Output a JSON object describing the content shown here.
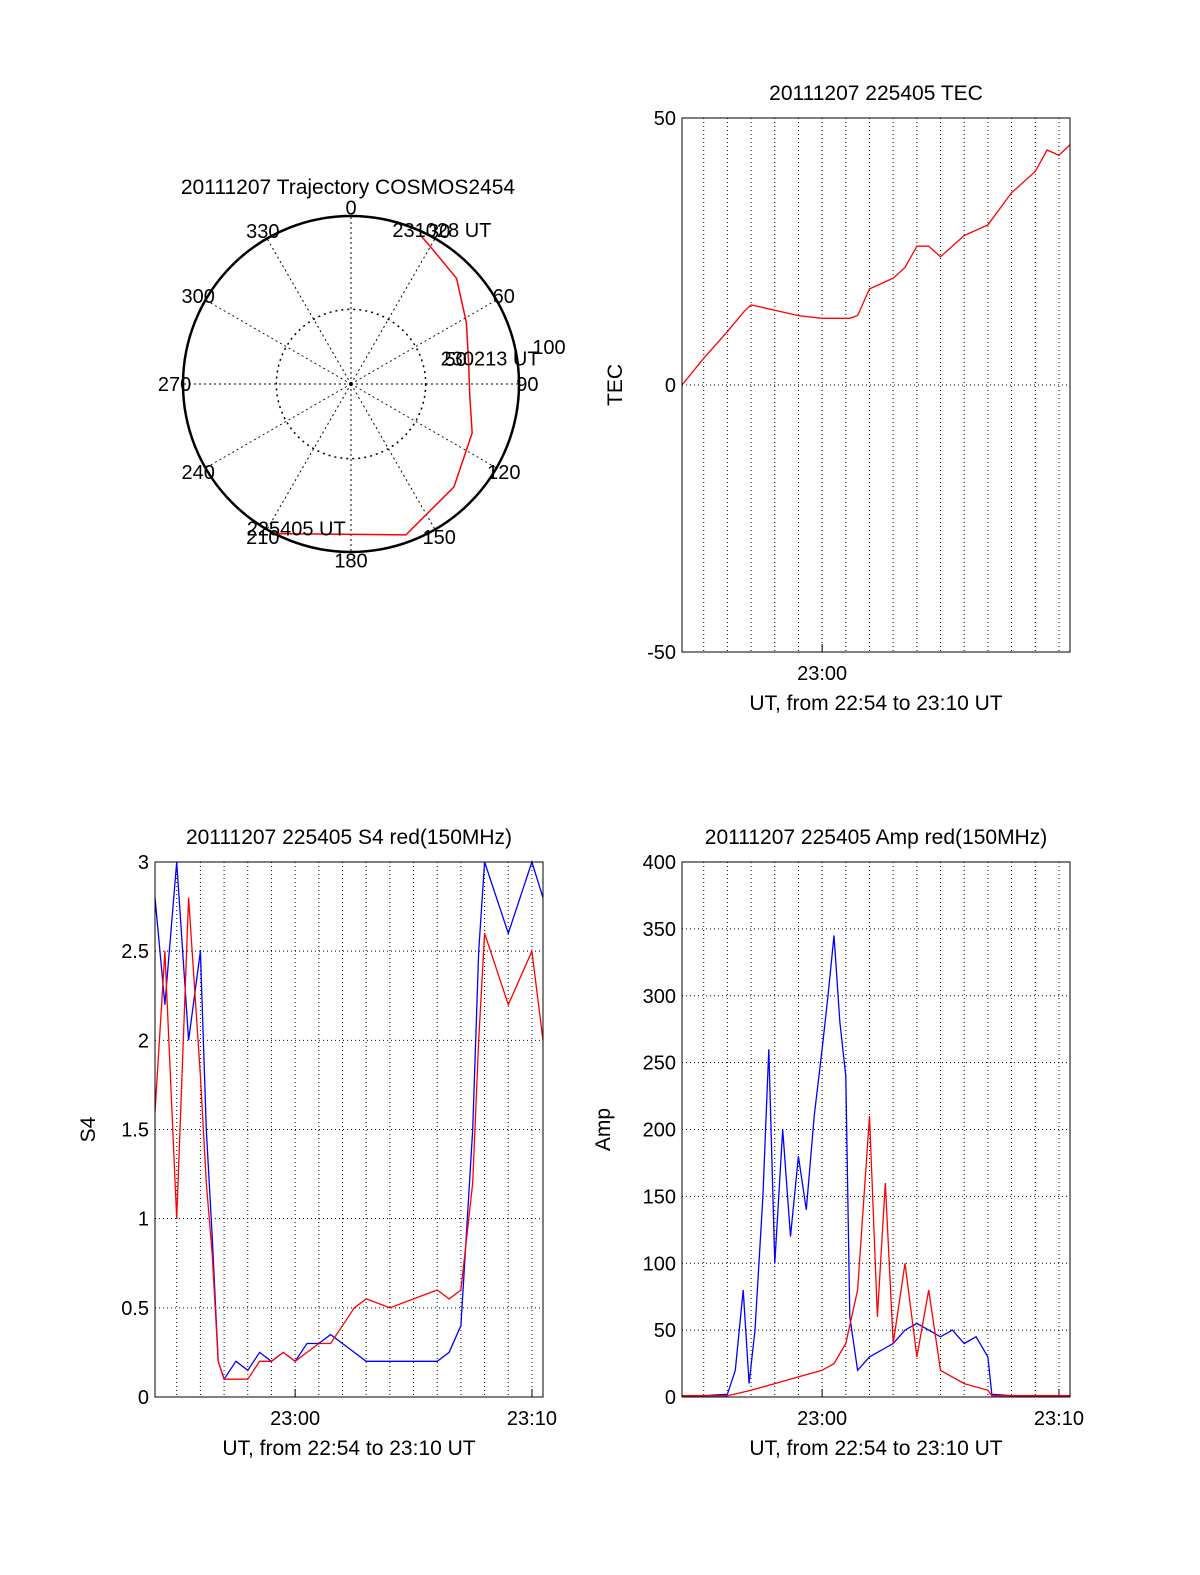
{
  "chart_data": [
    {
      "type": "polar",
      "title": "20111207 Trajectory COSMOS2454",
      "azimuth_labels": [
        "0",
        "30",
        "60",
        "90",
        "120",
        "150",
        "180",
        "210",
        "240",
        "270",
        "300",
        "330"
      ],
      "elevation_rings": [
        {
          "label": "50",
          "elevation": 50
        },
        {
          "label": "100",
          "elevation": 0
        }
      ],
      "trajectory_color": "#ff0000",
      "trajectory": [
        {
          "az": 207,
          "el": 0.05
        },
        {
          "az": 160,
          "el": 4
        },
        {
          "az": 135,
          "el": 12
        },
        {
          "az": 112,
          "el": 20
        },
        {
          "az": 96,
          "el": 26
        },
        {
          "az": 80,
          "el": 26
        },
        {
          "az": 62,
          "el": 20
        },
        {
          "az": 45,
          "el": 10
        },
        {
          "az": 30,
          "el": 5
        },
        {
          "az": 25,
          "el": 2
        }
      ],
      "annotations": [
        {
          "text": "231028 UT",
          "at": "end"
        },
        {
          "text": "230213 UT",
          "at": "middle"
        },
        {
          "text": "225405 UT",
          "at": "start"
        }
      ]
    },
    {
      "type": "line",
      "title": "20111207 225405 TEC",
      "xlabel": "UT, from 22:54 to 23:10 UT",
      "ylabel": "TEC",
      "xlim": [
        "22:54:05",
        "23:10:28"
      ],
      "ylim": [
        -50,
        50
      ],
      "xticks": [
        {
          "label": "23:00",
          "t": "23:00"
        }
      ],
      "yticks": [
        "-50",
        "0",
        "50"
      ],
      "grid": true,
      "series": [
        {
          "color": "#ff0000",
          "points": [
            [
              "22:54:05",
              0
            ],
            [
              "22:55:00",
              5
            ],
            [
              "22:56:00",
              10
            ],
            [
              "22:56:45",
              14
            ],
            [
              "22:57:00",
              15
            ],
            [
              "22:58:00",
              14
            ],
            [
              "22:59:00",
              13
            ],
            [
              "23:00:00",
              12.5
            ],
            [
              "23:01:00",
              12.5
            ],
            [
              "23:01:10",
              12.5
            ],
            [
              "23:01:30",
              13
            ],
            [
              "23:02:00",
              18
            ],
            [
              "23:03:00",
              20
            ],
            [
              "23:03:30",
              22
            ],
            [
              "23:04:00",
              26
            ],
            [
              "23:04:30",
              26
            ],
            [
              "23:05:00",
              24
            ],
            [
              "23:06:00",
              28
            ],
            [
              "23:07:00",
              30
            ],
            [
              "23:08:00",
              36
            ],
            [
              "23:09:00",
              40
            ],
            [
              "23:09:30",
              44
            ],
            [
              "23:10:00",
              43
            ],
            [
              "23:10:28",
              45
            ]
          ]
        }
      ]
    },
    {
      "type": "line",
      "title": "20111207 225405 S4 red(150MHz)",
      "xlabel": "UT, from 22:54 to 23:10 UT",
      "ylabel": "S4",
      "xlim": [
        "22:54:05",
        "23:10:28"
      ],
      "ylim": [
        0,
        3
      ],
      "xticks": [
        {
          "label": "23:00",
          "t": "23:00"
        },
        {
          "label": "23:10",
          "t": "23:10"
        }
      ],
      "yticks": [
        "0",
        "0.5",
        "1",
        "1.5",
        "2",
        "2.5",
        "3"
      ],
      "grid": true,
      "series": [
        {
          "color": "#0000ff",
          "points": [
            [
              "22:54:05",
              2.8
            ],
            [
              "22:54:30",
              2.2
            ],
            [
              "22:55:00",
              3.0
            ],
            [
              "22:55:30",
              2.0
            ],
            [
              "22:56:00",
              2.5
            ],
            [
              "22:56:15",
              1.5
            ],
            [
              "22:56:30",
              0.9
            ],
            [
              "22:56:45",
              0.2
            ],
            [
              "22:57:00",
              0.1
            ],
            [
              "22:57:30",
              0.2
            ],
            [
              "22:58:00",
              0.15
            ],
            [
              "22:58:30",
              0.25
            ],
            [
              "22:59:00",
              0.2
            ],
            [
              "22:59:30",
              0.25
            ],
            [
              "23:00:00",
              0.2
            ],
            [
              "23:00:30",
              0.3
            ],
            [
              "23:01:00",
              0.3
            ],
            [
              "23:01:30",
              0.35
            ],
            [
              "23:02:00",
              0.3
            ],
            [
              "23:02:30",
              0.25
            ],
            [
              "23:03:00",
              0.2
            ],
            [
              "23:04:00",
              0.2
            ],
            [
              "23:05:00",
              0.2
            ],
            [
              "23:06:00",
              0.2
            ],
            [
              "23:06:30",
              0.25
            ],
            [
              "23:07:00",
              0.4
            ],
            [
              "23:07:30",
              1.5
            ],
            [
              "23:07:45",
              2.5
            ],
            [
              "23:08:00",
              3.0
            ],
            [
              "23:09:00",
              2.6
            ],
            [
              "23:10:00",
              3.0
            ],
            [
              "23:10:28",
              2.8
            ]
          ]
        },
        {
          "color": "#ff0000",
          "points": [
            [
              "22:54:05",
              1.6
            ],
            [
              "22:54:30",
              2.5
            ],
            [
              "22:55:00",
              1.0
            ],
            [
              "22:55:30",
              2.8
            ],
            [
              "22:56:00",
              1.8
            ],
            [
              "22:56:15",
              1.2
            ],
            [
              "22:56:30",
              0.8
            ],
            [
              "22:56:45",
              0.2
            ],
            [
              "22:57:00",
              0.1
            ],
            [
              "22:57:30",
              0.1
            ],
            [
              "22:58:00",
              0.1
            ],
            [
              "22:58:30",
              0.2
            ],
            [
              "22:59:00",
              0.2
            ],
            [
              "22:59:30",
              0.25
            ],
            [
              "23:00:00",
              0.2
            ],
            [
              "23:00:30",
              0.25
            ],
            [
              "23:01:00",
              0.3
            ],
            [
              "23:01:30",
              0.3
            ],
            [
              "23:02:00",
              0.4
            ],
            [
              "23:02:30",
              0.5
            ],
            [
              "23:03:00",
              0.55
            ],
            [
              "23:04:00",
              0.5
            ],
            [
              "23:05:00",
              0.55
            ],
            [
              "23:06:00",
              0.6
            ],
            [
              "23:06:30",
              0.55
            ],
            [
              "23:07:00",
              0.6
            ],
            [
              "23:07:30",
              1.2
            ],
            [
              "23:07:45",
              2.0
            ],
            [
              "23:08:00",
              2.6
            ],
            [
              "23:09:00",
              2.2
            ],
            [
              "23:10:00",
              2.5
            ],
            [
              "23:10:28",
              2.0
            ]
          ]
        }
      ]
    },
    {
      "type": "line",
      "title": "20111207 225405 Amp red(150MHz)",
      "xlabel": "UT, from 22:54 to 23:10 UT",
      "ylabel": "Amp",
      "xlim": [
        "22:54:05",
        "23:10:28"
      ],
      "ylim": [
        0,
        400
      ],
      "xticks": [
        {
          "label": "23:00",
          "t": "23:00"
        },
        {
          "label": "23:10",
          "t": "23:10"
        }
      ],
      "yticks": [
        "0",
        "50",
        "100",
        "150",
        "200",
        "250",
        "300",
        "350",
        "400"
      ],
      "grid": true,
      "series": [
        {
          "color": "#0000ff",
          "points": [
            [
              "22:54:05",
              1
            ],
            [
              "22:55:00",
              1
            ],
            [
              "22:56:00",
              2
            ],
            [
              "22:56:20",
              20
            ],
            [
              "22:56:40",
              80
            ],
            [
              "22:56:55",
              10
            ],
            [
              "22:57:10",
              50
            ],
            [
              "22:57:30",
              150
            ],
            [
              "22:57:45",
              260
            ],
            [
              "22:58:00",
              100
            ],
            [
              "22:58:20",
              200
            ],
            [
              "22:58:40",
              120
            ],
            [
              "22:59:00",
              180
            ],
            [
              "22:59:20",
              140
            ],
            [
              "22:59:40",
              210
            ],
            [
              "23:00:00",
              260
            ],
            [
              "23:00:15",
              300
            ],
            [
              "23:00:30",
              345
            ],
            [
              "23:00:45",
              280
            ],
            [
              "23:01:00",
              240
            ],
            [
              "23:01:10",
              60
            ],
            [
              "23:01:30",
              20
            ],
            [
              "23:02:00",
              30
            ],
            [
              "23:03:00",
              40
            ],
            [
              "23:03:30",
              50
            ],
            [
              "23:04:00",
              55
            ],
            [
              "23:05:00",
              45
            ],
            [
              "23:05:30",
              50
            ],
            [
              "23:06:00",
              40
            ],
            [
              "23:06:30",
              45
            ],
            [
              "23:07:00",
              30
            ],
            [
              "23:07:10",
              2
            ],
            [
              "23:08:00",
              1
            ],
            [
              "23:10:28",
              1
            ]
          ]
        },
        {
          "color": "#ff0000",
          "points": [
            [
              "22:54:05",
              1
            ],
            [
              "22:56:00",
              1
            ],
            [
              "22:57:00",
              5
            ],
            [
              "22:58:00",
              10
            ],
            [
              "22:59:00",
              15
            ],
            [
              "23:00:00",
              20
            ],
            [
              "23:00:30",
              25
            ],
            [
              "23:01:00",
              40
            ],
            [
              "23:01:30",
              80
            ],
            [
              "23:02:00",
              210
            ],
            [
              "23:02:20",
              60
            ],
            [
              "23:02:40",
              160
            ],
            [
              "23:03:00",
              40
            ],
            [
              "23:03:30",
              100
            ],
            [
              "23:04:00",
              30
            ],
            [
              "23:04:30",
              80
            ],
            [
              "23:05:00",
              20
            ],
            [
              "23:06:00",
              10
            ],
            [
              "23:07:00",
              5
            ],
            [
              "23:07:10",
              1
            ],
            [
              "23:10:28",
              1
            ]
          ]
        }
      ]
    }
  ]
}
